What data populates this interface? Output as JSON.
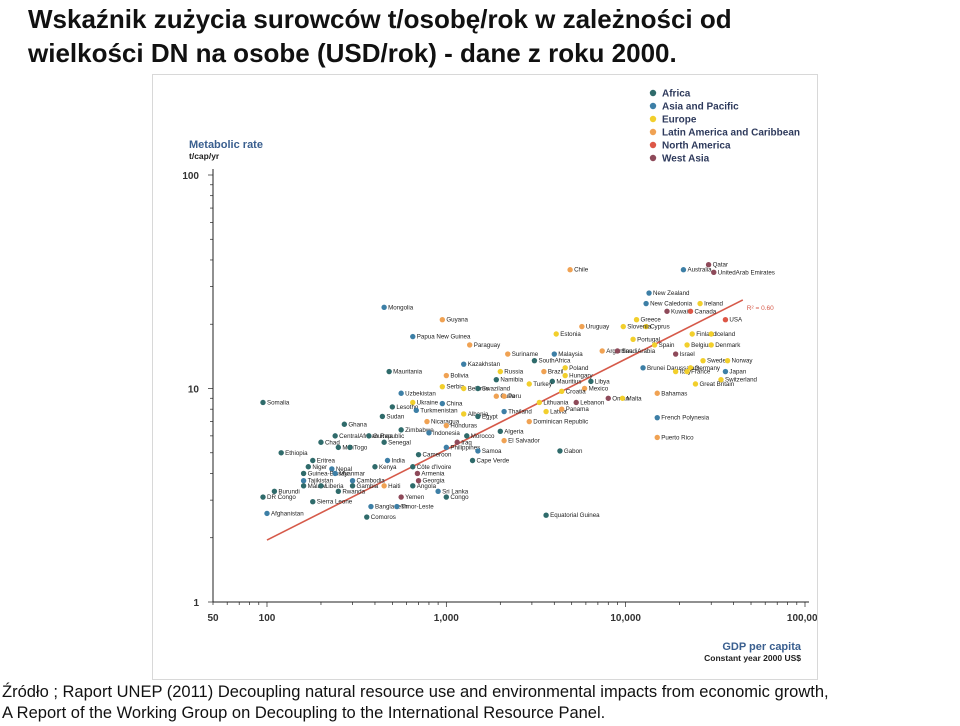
{
  "slide": {
    "title": "Wskaźnik zużycia surowców t/osobę/rok w zależności od\nwielkości DN na osobe (USD/rok) -  dane z roku 2000.",
    "source": "Źródło ; Raport UNEP (2011) Decoupling natural resource use and environmental impacts from economic growth,\nA Report of the Working Group on Decoupling to the International Resource Panel."
  },
  "colors": {
    "Africa": "#2f6b6b",
    "Asia and Pacific": "#3d7fa6",
    "Europe": "#f2cf2c",
    "Latin America and Caribbean": "#f0a253",
    "North America": "#dd5747",
    "West Asia": "#8e4a5a",
    "trend": "#d65a4a",
    "axis": "#222222"
  },
  "chart_data": {
    "type": "scatter",
    "ylabel": "Metabolic rate",
    "ylabel_unit": "t/cap/yr",
    "xlabel": "GDP per capita",
    "xlabel_unit": "Constant year 2000 US$",
    "x_scale": "log",
    "y_scale": "log",
    "xlim": [
      50,
      100000
    ],
    "ylim": [
      1,
      100
    ],
    "x_ticks": [
      50,
      100,
      1000,
      10000,
      100000
    ],
    "x_tick_labels": [
      "50",
      "100",
      "1,000",
      "10,000",
      "100,000"
    ],
    "y_ticks": [
      1,
      10,
      100
    ],
    "y_tick_labels": [
      "1",
      "10",
      "100"
    ],
    "legend_position": "top-right",
    "legend": [
      "Africa",
      "Asia and Pacific",
      "Europe",
      "Latin America and Caribbean",
      "North America",
      "West Asia"
    ],
    "trendline": {
      "x": [
        100,
        45000
      ],
      "y": [
        1.95,
        26
      ],
      "label": "R² = 0.60"
    },
    "points": [
      {
        "name": "Chile",
        "region": "Latin America and Caribbean",
        "x": 4900,
        "y": 36
      },
      {
        "name": "Australia",
        "region": "Asia and Pacific",
        "x": 21000,
        "y": 36
      },
      {
        "name": "Qatar",
        "region": "West Asia",
        "x": 29000,
        "y": 38
      },
      {
        "name": "UnitedArab Emirates",
        "region": "West Asia",
        "x": 31000,
        "y": 35
      },
      {
        "name": "New Zealand",
        "region": "Asia and Pacific",
        "x": 13500,
        "y": 28
      },
      {
        "name": "New Caledonia",
        "region": "Asia and Pacific",
        "x": 13000,
        "y": 25
      },
      {
        "name": "Ireland",
        "region": "Europe",
        "x": 26000,
        "y": 25
      },
      {
        "name": "Kuwait",
        "region": "West Asia",
        "x": 17000,
        "y": 23
      },
      {
        "name": "Canada",
        "region": "North America",
        "x": 23000,
        "y": 23
      },
      {
        "name": "Greece",
        "region": "Europe",
        "x": 11500,
        "y": 21
      },
      {
        "name": "USA",
        "region": "North America",
        "x": 36000,
        "y": 21
      },
      {
        "name": "Cyprus",
        "region": "Europe",
        "x": 13000,
        "y": 19.5
      },
      {
        "name": "Uruguay",
        "region": "Latin America and Caribbean",
        "x": 5700,
        "y": 19.5
      },
      {
        "name": "Slovenia",
        "region": "Europe",
        "x": 9700,
        "y": 19.5
      },
      {
        "name": "Mongolia",
        "region": "Asia and Pacific",
        "x": 450,
        "y": 24
      },
      {
        "name": "Guyana",
        "region": "Latin America and Caribbean",
        "x": 950,
        "y": 21
      },
      {
        "name": "Estonia",
        "region": "Europe",
        "x": 4100,
        "y": 18
      },
      {
        "name": "Finland",
        "region": "Europe",
        "x": 23500,
        "y": 18
      },
      {
        "name": "Iceland",
        "region": "Europe",
        "x": 30000,
        "y": 18
      },
      {
        "name": "Papua New Guinea",
        "region": "Asia and Pacific",
        "x": 650,
        "y": 17.5
      },
      {
        "name": "Portugal",
        "region": "Europe",
        "x": 11000,
        "y": 17
      },
      {
        "name": "Paraguay",
        "region": "Latin America and Caribbean",
        "x": 1350,
        "y": 16
      },
      {
        "name": "Spain",
        "region": "Europe",
        "x": 14500,
        "y": 16
      },
      {
        "name": "Belgium",
        "region": "Europe",
        "x": 22000,
        "y": 16
      },
      {
        "name": "Denmark",
        "region": "Europe",
        "x": 30000,
        "y": 16
      },
      {
        "name": "Argentina",
        "region": "Latin America and Caribbean",
        "x": 7400,
        "y": 15
      },
      {
        "name": "SaudiArabia",
        "region": "West Asia",
        "x": 9000,
        "y": 15
      },
      {
        "name": "Israel",
        "region": "West Asia",
        "x": 19000,
        "y": 14.5
      },
      {
        "name": "Malaysia",
        "region": "Asia and Pacific",
        "x": 4000,
        "y": 14.5
      },
      {
        "name": "Suriname",
        "region": "Latin America and Caribbean",
        "x": 2200,
        "y": 14.5
      },
      {
        "name": "SouthAfrica",
        "region": "Africa",
        "x": 3100,
        "y": 13.5
      },
      {
        "name": "Sweden",
        "region": "Europe",
        "x": 27000,
        "y": 13.5
      },
      {
        "name": "Norway",
        "region": "Europe",
        "x": 37000,
        "y": 13.5
      },
      {
        "name": "Kazakhstan",
        "region": "Asia and Pacific",
        "x": 1250,
        "y": 13
      },
      {
        "name": "Poland",
        "region": "Europe",
        "x": 4600,
        "y": 12.5
      },
      {
        "name": "Brunei Darussalam",
        "region": "Asia and Pacific",
        "x": 12500,
        "y": 12.5
      },
      {
        "name": "Germany",
        "region": "Europe",
        "x": 23000,
        "y": 12.5
      },
      {
        "name": "Mauritania",
        "region": "Africa",
        "x": 480,
        "y": 12
      },
      {
        "name": "Russia",
        "region": "Europe",
        "x": 2000,
        "y": 12
      },
      {
        "name": "Brazil",
        "region": "Latin America and Caribbean",
        "x": 3500,
        "y": 12
      },
      {
        "name": "Italy",
        "region": "Europe",
        "x": 19000,
        "y": 12
      },
      {
        "name": "France",
        "region": "Europe",
        "x": 22000,
        "y": 12
      },
      {
        "name": "Japan",
        "region": "Asia and Pacific",
        "x": 36000,
        "y": 12
      },
      {
        "name": "Bolivia",
        "region": "Latin America and Caribbean",
        "x": 1000,
        "y": 11.5
      },
      {
        "name": "Hungary",
        "region": "Europe",
        "x": 4600,
        "y": 11.5
      },
      {
        "name": "Namibia",
        "region": "Africa",
        "x": 1900,
        "y": 11
      },
      {
        "name": "Switzerland",
        "region": "Europe",
        "x": 34000,
        "y": 11
      },
      {
        "name": "Mauritius",
        "region": "Africa",
        "x": 3900,
        "y": 10.8
      },
      {
        "name": "Libya",
        "region": "Africa",
        "x": 6400,
        "y": 10.8
      },
      {
        "name": "Turkey",
        "region": "Europe",
        "x": 2900,
        "y": 10.5
      },
      {
        "name": "Great Britain",
        "region": "Europe",
        "x": 24500,
        "y": 10.5
      },
      {
        "name": "Serbia",
        "region": "Europe",
        "x": 950,
        "y": 10.2
      },
      {
        "name": "Belarus",
        "region": "Europe",
        "x": 1250,
        "y": 10
      },
      {
        "name": "Swaziland",
        "region": "Africa",
        "x": 1500,
        "y": 10
      },
      {
        "name": "Mexico",
        "region": "Latin America and Caribbean",
        "x": 5900,
        "y": 10
      },
      {
        "name": "Croatia",
        "region": "Europe",
        "x": 4400,
        "y": 9.7
      },
      {
        "name": "Bahamas",
        "region": "Latin America and Caribbean",
        "x": 15000,
        "y": 9.5
      },
      {
        "name": "Uzbekistan",
        "region": "Asia and Pacific",
        "x": 560,
        "y": 9.5
      },
      {
        "name": "Cuba",
        "region": "Latin America and Caribbean",
        "x": 1900,
        "y": 9.2
      },
      {
        "name": "Peru",
        "region": "Latin America and Caribbean",
        "x": 2100,
        "y": 9.2
      },
      {
        "name": "Oman",
        "region": "West Asia",
        "x": 8000,
        "y": 9.0
      },
      {
        "name": "Malta",
        "region": "Europe",
        "x": 9600,
        "y": 9.0
      },
      {
        "name": "Somalia",
        "region": "Africa",
        "x": 95,
        "y": 8.6
      },
      {
        "name": "Ukraine",
        "region": "Europe",
        "x": 650,
        "y": 8.6
      },
      {
        "name": "China",
        "region": "Asia and Pacific",
        "x": 950,
        "y": 8.5
      },
      {
        "name": "Lithuania",
        "region": "Europe",
        "x": 3300,
        "y": 8.6
      },
      {
        "name": "Lebanon",
        "region": "West Asia",
        "x": 5300,
        "y": 8.6
      },
      {
        "name": "Lesotho",
        "region": "Africa",
        "x": 500,
        "y": 8.2
      },
      {
        "name": "Turkmenistan",
        "region": "Asia and Pacific",
        "x": 680,
        "y": 7.9
      },
      {
        "name": "Thailand",
        "region": "Asia and Pacific",
        "x": 2100,
        "y": 7.8
      },
      {
        "name": "Latvia",
        "region": "Europe",
        "x": 3600,
        "y": 7.8
      },
      {
        "name": "Panama",
        "region": "Latin America and Caribbean",
        "x": 4400,
        "y": 8.0
      },
      {
        "name": "French Polynesia",
        "region": "Asia and Pacific",
        "x": 15000,
        "y": 7.3
      },
      {
        "name": "Sudan",
        "region": "Africa",
        "x": 440,
        "y": 7.4
      },
      {
        "name": "Albania",
        "region": "Europe",
        "x": 1250,
        "y": 7.6
      },
      {
        "name": "Egypt",
        "region": "Africa",
        "x": 1500,
        "y": 7.4
      },
      {
        "name": "Nicaragua",
        "region": "Latin America and Caribbean",
        "x": 780,
        "y": 7.0
      },
      {
        "name": "Dominican Republic",
        "region": "Latin America and Caribbean",
        "x": 2900,
        "y": 7.0
      },
      {
        "name": "Ghana",
        "region": "Africa",
        "x": 270,
        "y": 6.8
      },
      {
        "name": "Honduras",
        "region": "Latin America and Caribbean",
        "x": 1000,
        "y": 6.7
      },
      {
        "name": "Zimbabwe",
        "region": "Africa",
        "x": 560,
        "y": 6.4
      },
      {
        "name": "Indonesia",
        "region": "Asia and Pacific",
        "x": 800,
        "y": 6.2
      },
      {
        "name": "Algeria",
        "region": "Africa",
        "x": 2000,
        "y": 6.3
      },
      {
        "name": "Puerto Rico",
        "region": "Latin America and Caribbean",
        "x": 15000,
        "y": 5.9
      },
      {
        "name": "CentralAfrican Republic",
        "region": "Africa",
        "x": 240,
        "y": 6.0
      },
      {
        "name": "Guinea",
        "region": "Africa",
        "x": 370,
        "y": 6.0
      },
      {
        "name": "Morocco",
        "region": "Africa",
        "x": 1300,
        "y": 6.0
      },
      {
        "name": "El Salvador",
        "region": "Latin America and Caribbean",
        "x": 2100,
        "y": 5.7
      },
      {
        "name": "Chad",
        "region": "Africa",
        "x": 200,
        "y": 5.6
      },
      {
        "name": "Senegal",
        "region": "Africa",
        "x": 450,
        "y": 5.6
      },
      {
        "name": "Iraq",
        "region": "West Asia",
        "x": 1150,
        "y": 5.6
      },
      {
        "name": "Mali",
        "region": "Africa",
        "x": 250,
        "y": 5.3
      },
      {
        "name": "Togo",
        "region": "Africa",
        "x": 290,
        "y": 5.3
      },
      {
        "name": "Philippines",
        "region": "Asia and Pacific",
        "x": 1000,
        "y": 5.3
      },
      {
        "name": "Samoa",
        "region": "Asia and Pacific",
        "x": 1500,
        "y": 5.1
      },
      {
        "name": "Gabon",
        "region": "Africa",
        "x": 4300,
        "y": 5.1
      },
      {
        "name": "Ethiopia",
        "region": "Africa",
        "x": 120,
        "y": 5.0
      },
      {
        "name": "Cameroon",
        "region": "Africa",
        "x": 700,
        "y": 4.9
      },
      {
        "name": "India",
        "region": "Asia and Pacific",
        "x": 470,
        "y": 4.6
      },
      {
        "name": "Eritrea",
        "region": "Africa",
        "x": 180,
        "y": 4.6
      },
      {
        "name": "Cape Verde",
        "region": "Africa",
        "x": 1400,
        "y": 4.6
      },
      {
        "name": "Kenya",
        "region": "Africa",
        "x": 400,
        "y": 4.3
      },
      {
        "name": "Côte d'Ivoire",
        "region": "Africa",
        "x": 650,
        "y": 4.3
      },
      {
        "name": "Niger",
        "region": "Africa",
        "x": 170,
        "y": 4.3
      },
      {
        "name": "Nepal",
        "region": "Asia and Pacific",
        "x": 230,
        "y": 4.2
      },
      {
        "name": "Armenia",
        "region": "West Asia",
        "x": 690,
        "y": 4.0
      },
      {
        "name": "Guinea-Bissau",
        "region": "Africa",
        "x": 160,
        "y": 4.0
      },
      {
        "name": "Myanmar",
        "region": "Asia and Pacific",
        "x": 240,
        "y": 4.0
      },
      {
        "name": "Tajikistan",
        "region": "Asia and Pacific",
        "x": 160,
        "y": 3.7
      },
      {
        "name": "Cambodia",
        "region": "Asia and Pacific",
        "x": 300,
        "y": 3.7
      },
      {
        "name": "Georgia",
        "region": "West Asia",
        "x": 700,
        "y": 3.7
      },
      {
        "name": "Malawi",
        "region": "Africa",
        "x": 160,
        "y": 3.5
      },
      {
        "name": "Liberia",
        "region": "Africa",
        "x": 200,
        "y": 3.5
      },
      {
        "name": "Gambia",
        "region": "Africa",
        "x": 300,
        "y": 3.5
      },
      {
        "name": "Haiti",
        "region": "Latin America and Caribbean",
        "x": 450,
        "y": 3.5
      },
      {
        "name": "Angola",
        "region": "Africa",
        "x": 650,
        "y": 3.5
      },
      {
        "name": "Burundi",
        "region": "Africa",
        "x": 110,
        "y": 3.3
      },
      {
        "name": "Rwanda",
        "region": "Africa",
        "x": 250,
        "y": 3.3
      },
      {
        "name": "Sri Lanka",
        "region": "Asia and Pacific",
        "x": 900,
        "y": 3.3
      },
      {
        "name": "DR Congo",
        "region": "Africa",
        "x": 95,
        "y": 3.1
      },
      {
        "name": "Yemen",
        "region": "West Asia",
        "x": 560,
        "y": 3.1
      },
      {
        "name": "Congo",
        "region": "Africa",
        "x": 1000,
        "y": 3.1
      },
      {
        "name": "Sierra Leone",
        "region": "Africa",
        "x": 180,
        "y": 2.95
      },
      {
        "name": "Bangladesh",
        "region": "Asia and Pacific",
        "x": 380,
        "y": 2.8
      },
      {
        "name": "Timor-Leste",
        "region": "Asia and Pacific",
        "x": 530,
        "y": 2.8
      },
      {
        "name": "Afghanistan",
        "region": "Asia and Pacific",
        "x": 100,
        "y": 2.6
      },
      {
        "name": "Comoros",
        "region": "Africa",
        "x": 360,
        "y": 2.5
      },
      {
        "name": "Equatorial Guinea",
        "region": "Africa",
        "x": 3600,
        "y": 2.55
      }
    ]
  }
}
